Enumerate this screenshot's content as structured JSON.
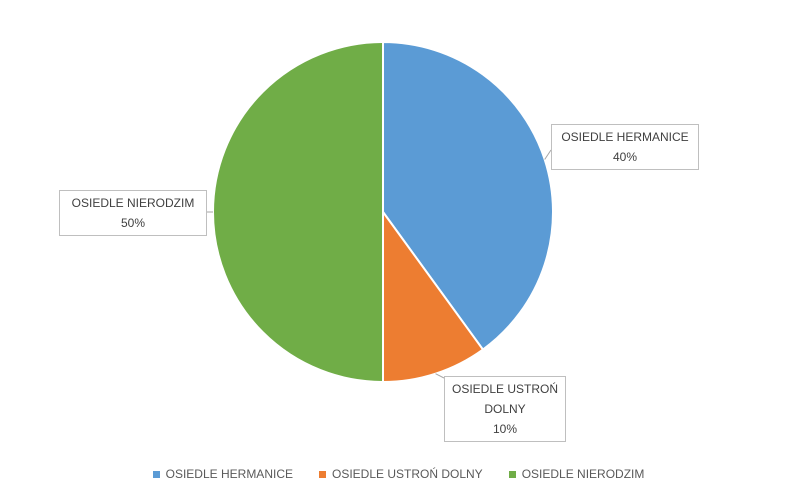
{
  "chart_data": {
    "type": "pie",
    "categories": [
      "OSIEDLE HERMANICE",
      "OSIEDLE USTROŃ DOLNY",
      "OSIEDLE NIERODZIM"
    ],
    "values": [
      40,
      10,
      50
    ],
    "value_labels": [
      "40%",
      "10%",
      "50%"
    ],
    "colors": [
      "#5b9bd5",
      "#ed7d31",
      "#70ad47"
    ],
    "legend": "bottom"
  }
}
